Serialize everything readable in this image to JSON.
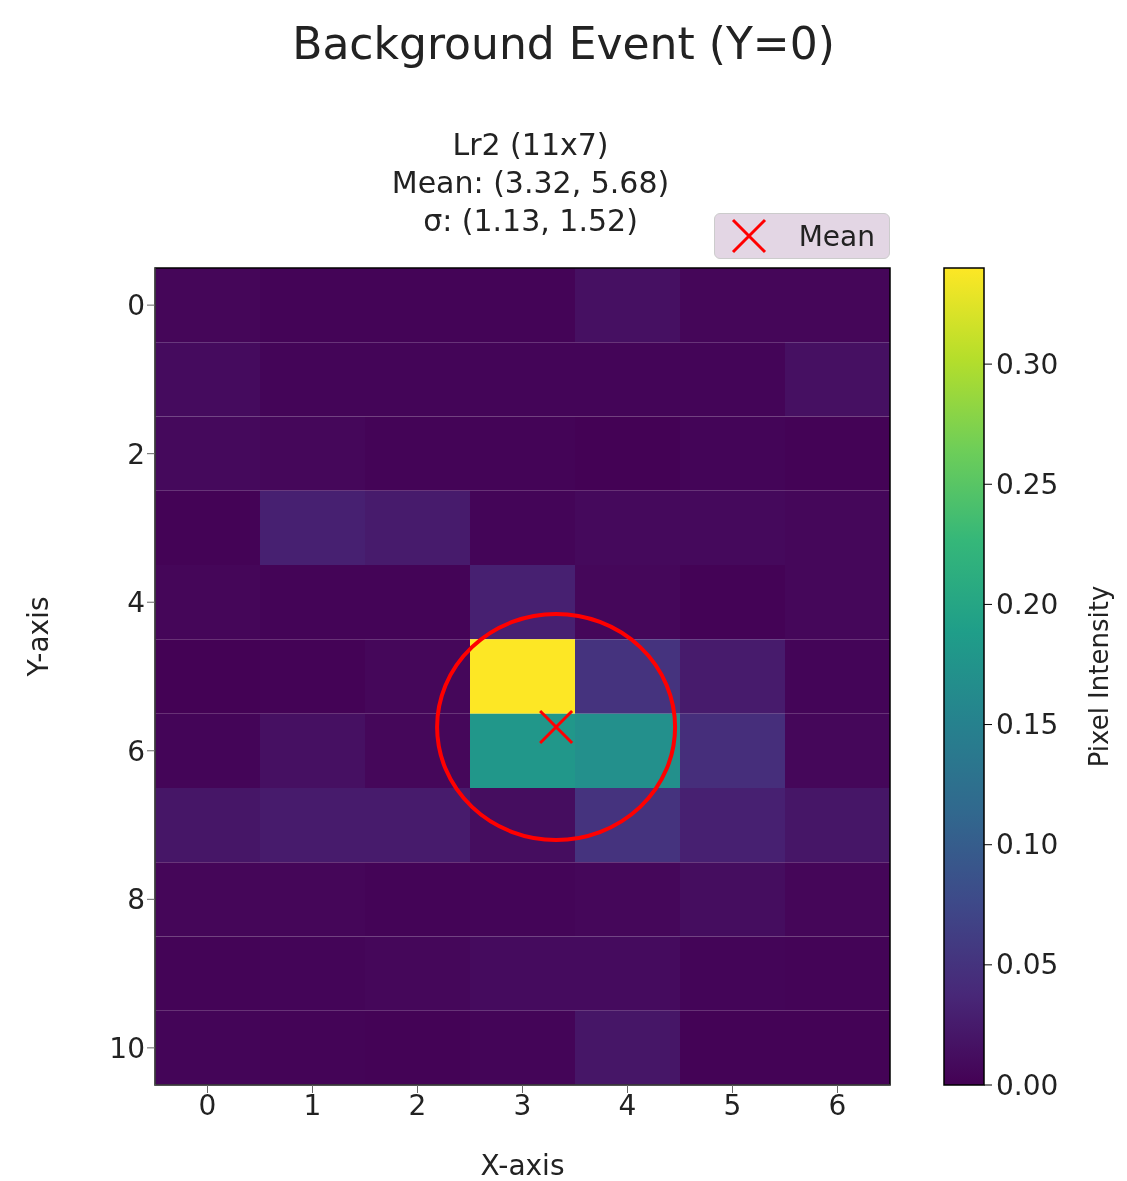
{
  "chart_data": {
    "type": "heatmap",
    "title": "Background Event (Y=0)",
    "subtitle": "Lr2 (11x7)\nMean: (3.32, 5.68)\nσ: (1.13, 1.52)",
    "xlabel": "X-axis",
    "ylabel": "Y-axis",
    "clabel": "Pixel Intensity",
    "xlim": [
      -0.5,
      6.5
    ],
    "ylim": [
      10.5,
      -0.5
    ],
    "xticks": [
      0,
      1,
      2,
      3,
      4,
      5,
      6
    ],
    "yticks": [
      0,
      2,
      4,
      6,
      8,
      10
    ],
    "cells": [
      [
        0.005,
        0.003,
        0.003,
        0.003,
        0.015,
        0.005,
        0.005
      ],
      [
        0.01,
        0.004,
        0.004,
        0.004,
        0.004,
        0.004,
        0.015
      ],
      [
        0.008,
        0.006,
        0.003,
        0.003,
        0.001,
        0.004,
        0.002
      ],
      [
        0.002,
        0.03,
        0.025,
        0.004,
        0.008,
        0.008,
        0.006
      ],
      [
        0.005,
        0.003,
        0.003,
        0.03,
        0.006,
        0.002,
        0.006
      ],
      [
        0.001,
        0.002,
        0.006,
        0.34,
        0.05,
        0.025,
        0.004
      ],
      [
        0.004,
        0.015,
        0.006,
        0.18,
        0.17,
        0.045,
        0.006
      ],
      [
        0.02,
        0.025,
        0.025,
        0.012,
        0.05,
        0.03,
        0.02
      ],
      [
        0.005,
        0.005,
        0.003,
        0.004,
        0.006,
        0.012,
        0.005
      ],
      [
        0.003,
        0.004,
        0.006,
        0.01,
        0.01,
        0.004,
        0.003
      ],
      [
        0.004,
        0.003,
        0.002,
        0.004,
        0.02,
        0.002,
        0.002
      ]
    ],
    "clim": [
      0,
      0.34
    ],
    "cticks": [
      {
        "value": 0,
        "label": "0.00"
      },
      {
        "value": 0.05,
        "label": "0.05"
      },
      {
        "value": 0.1,
        "label": "0.10"
      },
      {
        "value": 0.15,
        "label": "0.15"
      },
      {
        "value": 0.2,
        "label": "0.20"
      },
      {
        "value": 0.25,
        "label": "0.25"
      },
      {
        "value": 0.3,
        "label": "0.30"
      }
    ],
    "series": [
      {
        "type": "scatter",
        "name": "Mean",
        "color": "#ff0000",
        "x": [
          3.32
        ],
        "values": [
          5.68
        ],
        "marker": "cross"
      }
    ],
    "legend": "top right"
  }
}
